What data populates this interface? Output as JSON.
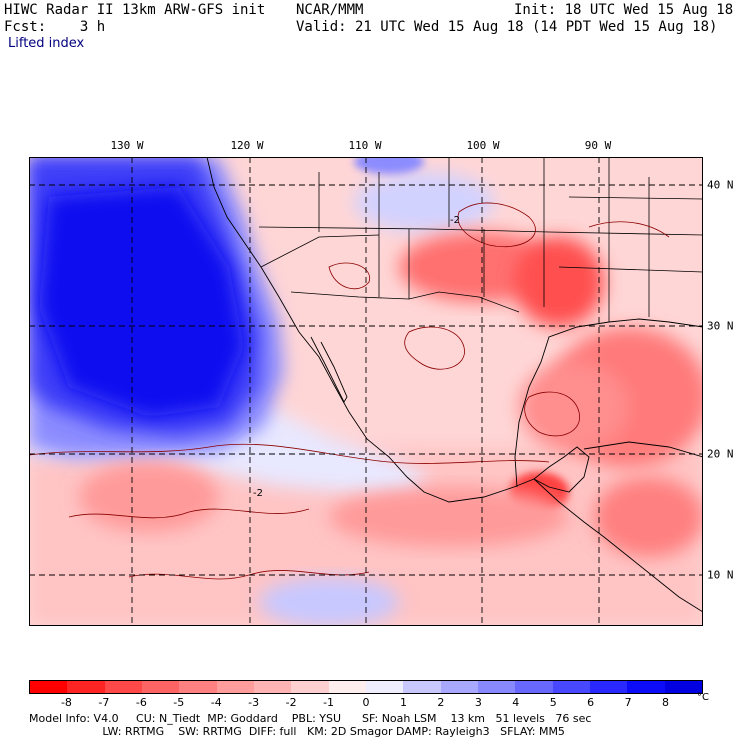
{
  "header": {
    "title_line": "HIWC Radar II 13km ARW-GFS init",
    "org": "NCAR/MMM",
    "init": "Init: 18 UTC Wed 15 Aug 18",
    "fcst": "Fcst:    3 h",
    "valid": "Valid: 21 UTC Wed 15 Aug 18 (14 PDT Wed 15 Aug 18)",
    "field": "Lifted index"
  },
  "map": {
    "lon_labels": [
      "130 W",
      "120 W",
      "110 W",
      "100 W",
      "90 W"
    ],
    "lat_labels": [
      "40 N",
      "30 N",
      "20 N",
      "10 N"
    ],
    "contour_label": "-2"
  },
  "colorbar": {
    "ticks": [
      "-8",
      "-7",
      "-6",
      "-5",
      "-4",
      "-3",
      "-2",
      "-1",
      "0",
      "1",
      "2",
      "3",
      "4",
      "5",
      "6",
      "7",
      "8"
    ],
    "unit": "°C",
    "colors": [
      "#ff0000",
      "#ff2424",
      "#ff4848",
      "#ff6464",
      "#ff8080",
      "#ff9c9c",
      "#ffb4b4",
      "#ffd0d0",
      "#ffeeee",
      "#eeeeff",
      "#c8c8ff",
      "#a8a8ff",
      "#8888ff",
      "#6868ff",
      "#4848ff",
      "#2828ff",
      "#0c0cf8",
      "#0000e0"
    ]
  },
  "footer": {
    "line1": "Model Info: V4.0     CU: N_Tiedt  MP: Goddard    PBL: YSU      SF: Noah LSM    13 km   51 levels   76 sec",
    "line2": "                     LW: RRTMG    SW: RRTMG  DIFF: full   KM: 2D Smagor DAMP: Rayleigh3   SFLAY: MM5"
  }
}
